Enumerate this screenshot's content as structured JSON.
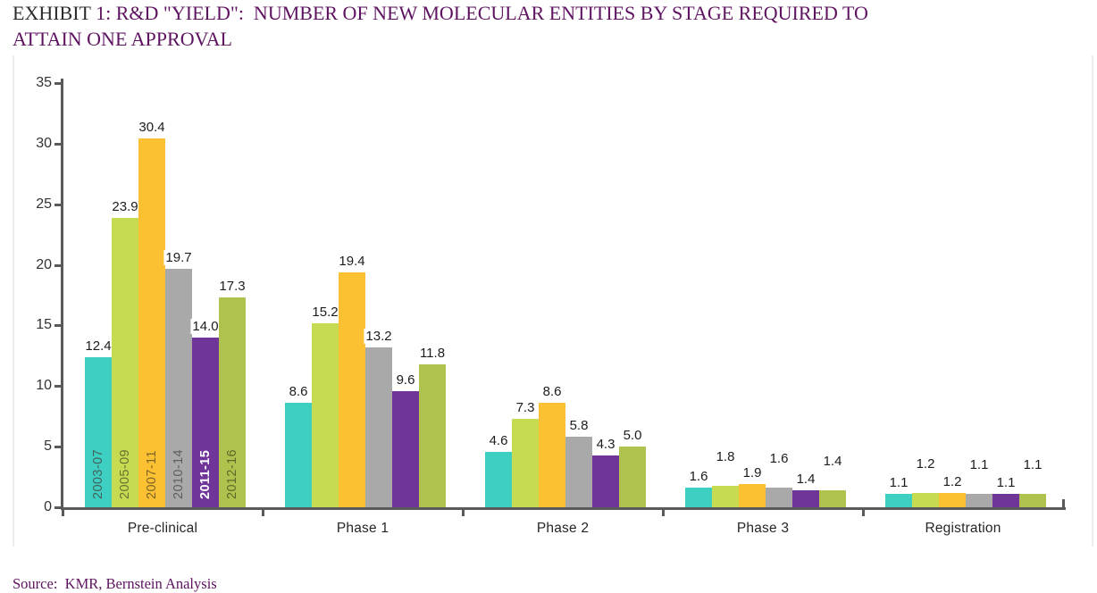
{
  "title": {
    "word_dark": "EXHIBIT",
    "line1_rest": " 1: R&D \"YIELD\":  NUMBER OF NEW MOLECULAR ENTITIES BY STAGE REQUIRED TO",
    "line2": "ATTAIN ONE APPROVAL"
  },
  "source": "Source:  KMR, Bernstein Analysis",
  "colors": {
    "title_accent": "#5e1360",
    "title_dark": "#2b2b2b",
    "axis": "#5a5a5a",
    "tick_label": "#333333",
    "value_label": "#1c1c1c",
    "frame_border": "#ececec"
  },
  "chart_data": {
    "type": "bar",
    "title": "",
    "xlabel": "",
    "ylabel": "",
    "categories": [
      "Pre-clinical",
      "Phase 1",
      "Phase 2",
      "Phase 3",
      "Registration"
    ],
    "series": [
      {
        "name": "2003-07",
        "color": "#3dd0c2",
        "label_color": "#44615d",
        "label_bold": false,
        "values": [
          12.4,
          8.6,
          4.6,
          1.6,
          1.1
        ]
      },
      {
        "name": "2005-09",
        "color": "#c6da52",
        "label_color": "#6a7231",
        "label_bold": false,
        "values": [
          23.9,
          15.2,
          7.3,
          1.8,
          1.2
        ]
      },
      {
        "name": "2007-11",
        "color": "#fcc033",
        "label_color": "#7d6426",
        "label_bold": false,
        "values": [
          30.4,
          19.4,
          8.6,
          1.9,
          1.2
        ]
      },
      {
        "name": "2010-14",
        "color": "#a9a9a9",
        "label_color": "#5e5e5e",
        "label_bold": false,
        "values": [
          19.7,
          13.2,
          5.8,
          1.6,
          1.1
        ]
      },
      {
        "name": "2011-15",
        "color": "#6f3598",
        "label_color": "#ffffff",
        "label_bold": true,
        "values": [
          14.0,
          9.6,
          4.3,
          1.4,
          1.1
        ]
      },
      {
        "name": "2012-16",
        "color": "#b0c24e",
        "label_color": "#5f682a",
        "label_bold": false,
        "values": [
          17.3,
          11.8,
          5.0,
          1.4,
          1.1
        ]
      }
    ],
    "ylim": [
      0,
      35
    ],
    "yticks": [
      0,
      5,
      10,
      15,
      20,
      25,
      30,
      35
    ],
    "grid": false,
    "legend_position": "rotated labels inside first category bars",
    "value_label_decimals": 1
  }
}
